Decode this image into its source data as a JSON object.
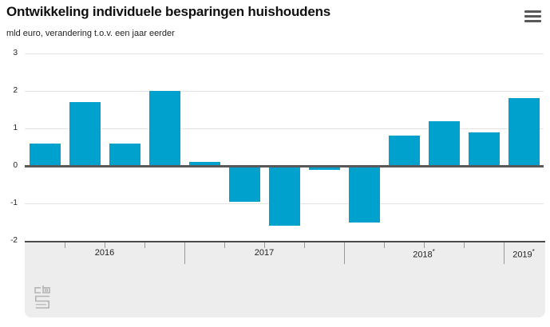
{
  "header": {
    "title": "Ontwikkeling individuele besparingen huishoudens",
    "subtitle": "mld euro, verandering t.o.v. een jaar eerder",
    "menu_icon": "hamburger-menu-icon"
  },
  "chart_data": {
    "type": "bar",
    "title": "Ontwikkeling individuele besparingen huishoudens",
    "ylabel": "mld euro, verandering t.o.v. een jaar eerder",
    "ylim": [
      -2,
      3
    ],
    "y_ticks": [
      3,
      2,
      1,
      0,
      -1,
      -2
    ],
    "grid": true,
    "legend": "none",
    "bar_color": "#00a1cd",
    "zero_line_color": "#58585a",
    "provisional_mark": "*",
    "groups": [
      {
        "label": "2016",
        "provisional": false,
        "quarter_values": [
          0.6,
          1.7,
          0.6,
          2.0
        ]
      },
      {
        "label": "2017",
        "provisional": false,
        "quarter_values": [
          0.1,
          -0.95,
          -1.6,
          -0.1
        ]
      },
      {
        "label": "2018",
        "provisional": true,
        "quarter_values": [
          -1.5,
          0.8,
          1.2,
          0.9
        ]
      },
      {
        "label": "2019",
        "provisional": true,
        "quarter_values": [
          1.8
        ]
      }
    ]
  },
  "footer": {
    "logo": "cbs-logo"
  }
}
